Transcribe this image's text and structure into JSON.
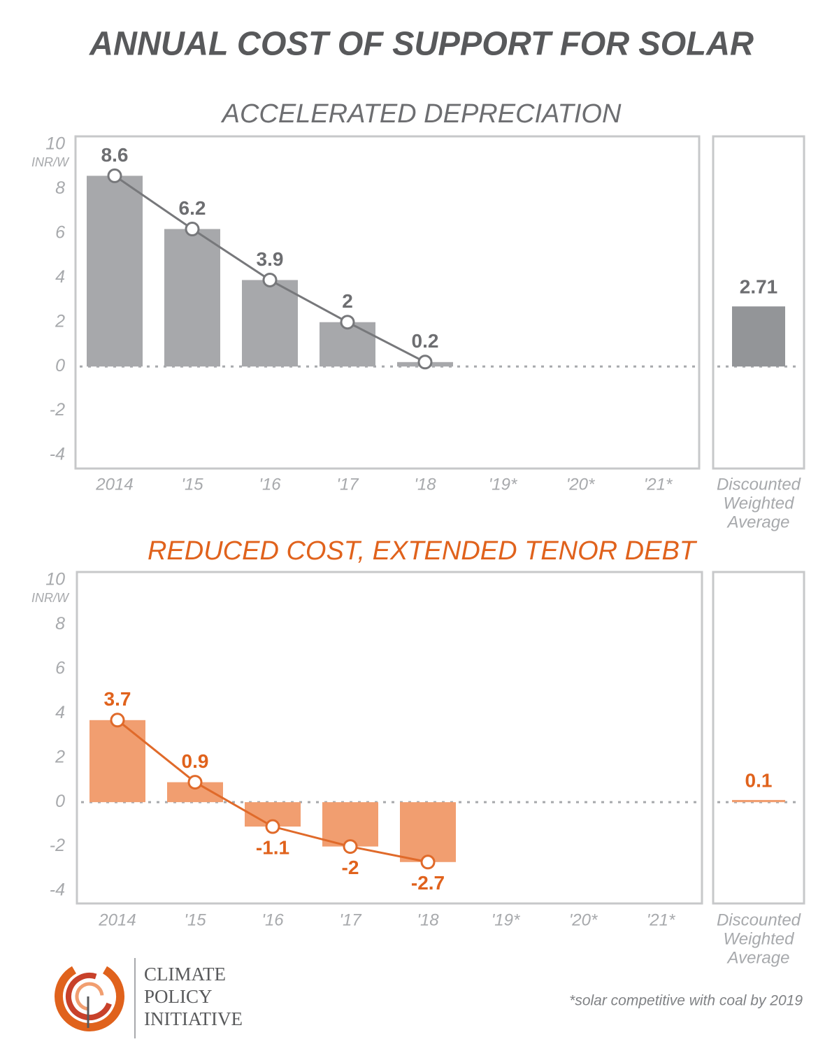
{
  "title": "ANNUAL COST OF SUPPORT FOR SOLAR",
  "footnote": "*solar competitive with coal by 2019",
  "logo": [
    "CLIMATE",
    "POLICY",
    "INITIATIVE"
  ],
  "chart_data": [
    {
      "type": "bar",
      "title": "ACCELERATED DEPRECIATION",
      "ylabel": "INR/W",
      "categories": [
        "2014",
        "'15",
        "'16",
        "'17",
        "'18",
        "'19*",
        "'20*",
        "'21*"
      ],
      "values": [
        8.6,
        6.2,
        3.9,
        2,
        0.2,
        null,
        null,
        null
      ],
      "color": "#a7a8ab",
      "line_color": "#77787b",
      "label_color": "#6d6e71",
      "title_color": "#6d6e71",
      "ylim": [
        -4,
        10
      ],
      "yticks": [
        -4,
        -2,
        0,
        2,
        4,
        6,
        8,
        10
      ],
      "summary": {
        "label": [
          "Discounted",
          "Weighted",
          "Average"
        ],
        "value": 2.71,
        "color": "#939598"
      }
    },
    {
      "type": "bar",
      "title": "REDUCED COST, EXTENDED TENOR DEBT",
      "ylabel": "INR/W",
      "categories": [
        "2014",
        "'15",
        "'16",
        "'17",
        "'18",
        "'19*",
        "'20*",
        "'21*"
      ],
      "values": [
        3.7,
        0.9,
        -1.1,
        -2,
        -2.7,
        null,
        null,
        null
      ],
      "color": "#f19e70",
      "line_color": "#e06a2a",
      "label_color": "#e0621c",
      "title_color": "#e0621c",
      "ylim": [
        -4,
        10
      ],
      "yticks": [
        -4,
        -2,
        0,
        2,
        4,
        6,
        8,
        10
      ],
      "summary": {
        "label": [
          "Discounted",
          "Weighted",
          "Average"
        ],
        "value": 0.1,
        "color": "#f19e70"
      }
    }
  ]
}
